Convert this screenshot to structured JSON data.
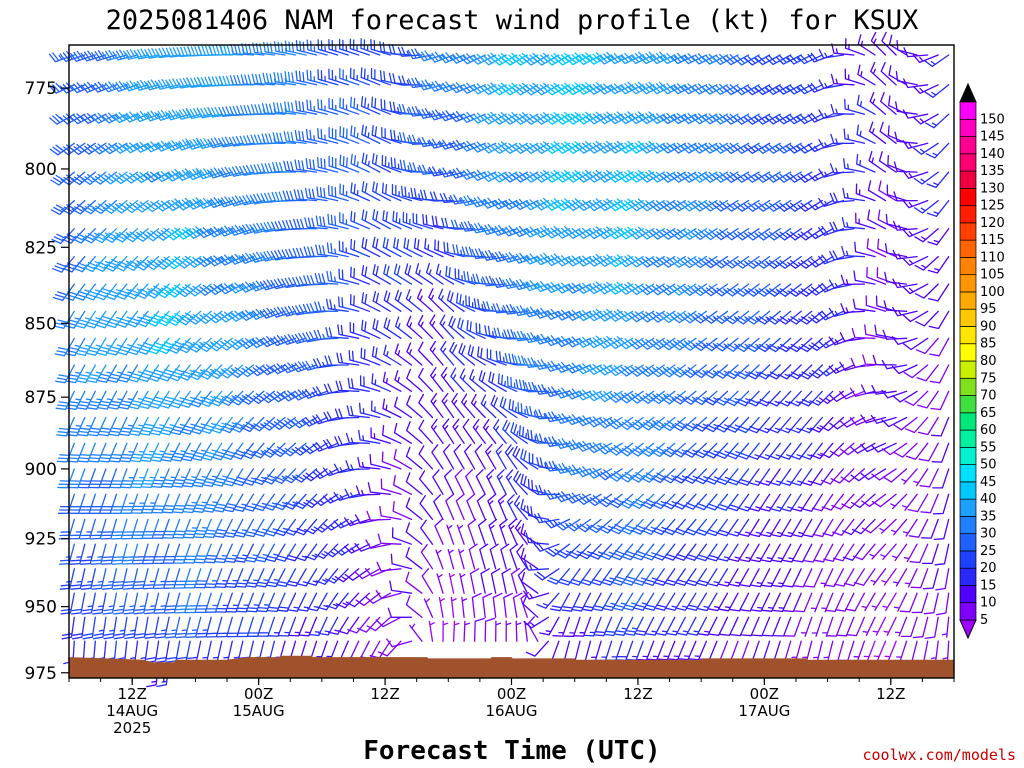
{
  "chart_data": {
    "type": "wind-barb",
    "title": "2025081406 NAM forecast wind profile (kt) for KSUX",
    "xlabel": "Forecast Time (UTC)",
    "ylabel": "",
    "x_range_hours": [
      0,
      84
    ],
    "y_range_hpa": [
      762,
      977
    ],
    "y_ticks": [
      775,
      800,
      825,
      850,
      875,
      900,
      925,
      950,
      975
    ],
    "x_ticks": [
      {
        "hour": 6,
        "line1": "12Z",
        "line2": "14AUG",
        "line3": "2025"
      },
      {
        "hour": 18,
        "line1": "00Z",
        "line2": "15AUG",
        "line3": ""
      },
      {
        "hour": 30,
        "line1": "12Z",
        "line2": "",
        "line3": ""
      },
      {
        "hour": 42,
        "line1": "00Z",
        "line2": "16AUG",
        "line3": ""
      },
      {
        "hour": 54,
        "line1": "12Z",
        "line2": "",
        "line3": ""
      },
      {
        "hour": 66,
        "line1": "00Z",
        "line2": "17AUG",
        "line3": ""
      },
      {
        "hour": 78,
        "line1": "12Z",
        "line2": "",
        "line3": ""
      }
    ],
    "colorbar": {
      "levels": [
        5,
        10,
        15,
        20,
        25,
        30,
        35,
        40,
        45,
        50,
        55,
        60,
        65,
        70,
        75,
        80,
        85,
        90,
        95,
        100,
        105,
        110,
        115,
        120,
        125,
        130,
        135,
        140,
        145,
        150
      ],
      "colors": [
        "#8000ff",
        "#5000ff",
        "#2828ff",
        "#1e40ff",
        "#2060ff",
        "#1e80ff",
        "#1ea0ff",
        "#00c8ff",
        "#00e0ff",
        "#00f0d0",
        "#00f0a0",
        "#00e678",
        "#40e040",
        "#80e020",
        "#c8f000",
        "#ffff00",
        "#ffe600",
        "#ffc800",
        "#ffaa00",
        "#ff9600",
        "#ff8200",
        "#ff6400",
        "#ff4000",
        "#ff1e00",
        "#ff0000",
        "#f00040",
        "#ff0070",
        "#ff0090",
        "#ff00c0",
        "#ff00ff"
      ],
      "under_color": "#a000ff",
      "over_color": "#000000"
    },
    "surface": {
      "color": "#a0522d",
      "pressure_hpa_by_hour": [
        [
          0,
          969
        ],
        [
          7,
          970
        ],
        [
          8,
          971
        ],
        [
          10,
          971
        ],
        [
          10.1,
          970
        ],
        [
          15,
          970
        ],
        [
          16,
          969.5
        ],
        [
          17,
          969
        ],
        [
          20,
          969
        ],
        [
          20.1,
          968.5
        ],
        [
          23,
          968.5
        ],
        [
          23.1,
          969
        ],
        [
          34,
          969
        ],
        [
          34.1,
          969.5
        ],
        [
          40,
          969.5
        ],
        [
          40.1,
          969
        ],
        [
          42,
          969
        ],
        [
          42.1,
          969.5
        ],
        [
          48,
          969.5
        ],
        [
          48.1,
          970
        ],
        [
          60,
          970
        ],
        [
          60.1,
          969.5
        ],
        [
          70,
          969.5
        ],
        [
          70.1,
          970
        ],
        [
          84,
          970
        ]
      ]
    },
    "wind_speed_field": {
      "description": "barb speed (kt) sampled at hour/pressure control points; directions in degrees (meteorological, wind from)",
      "hours": [
        0,
        6,
        12,
        18,
        24,
        30,
        36,
        42,
        48,
        54,
        60,
        66,
        72,
        78,
        84
      ],
      "levels_hpa": [
        765,
        800,
        850,
        900,
        950,
        970
      ],
      "speed_kt": [
        [
          25,
          28,
          32,
          28,
          22,
          15
        ],
        [
          32,
          35,
          38,
          33,
          25,
          15
        ],
        [
          40,
          38,
          40,
          35,
          28,
          15
        ],
        [
          35,
          32,
          33,
          30,
          22,
          12
        ],
        [
          28,
          30,
          28,
          22,
          16,
          10
        ],
        [
          20,
          24,
          18,
          12,
          10,
          8
        ],
        [
          30,
          25,
          14,
          10,
          6,
          5
        ],
        [
          40,
          35,
          28,
          15,
          10,
          6
        ],
        [
          42,
          40,
          35,
          30,
          15,
          10
        ],
        [
          38,
          40,
          38,
          32,
          25,
          12
        ],
        [
          35,
          35,
          32,
          25,
          15,
          10
        ],
        [
          25,
          28,
          25,
          18,
          12,
          8
        ],
        [
          20,
          20,
          18,
          12,
          8,
          6
        ],
        [
          10,
          12,
          10,
          8,
          6,
          5
        ],
        [
          15,
          15,
          12,
          10,
          8,
          6
        ]
      ],
      "dir_deg": [
        [
          250,
          230,
          210,
          200,
          190,
          180
        ],
        [
          255,
          235,
          215,
          200,
          190,
          185
        ],
        [
          265,
          245,
          225,
          205,
          195,
          190
        ],
        [
          275,
          260,
          240,
          215,
          200,
          190
        ],
        [
          285,
          280,
          260,
          230,
          205,
          195
        ],
        [
          290,
          300,
          300,
          280,
          230,
          200
        ],
        [
          250,
          260,
          320,
          330,
          350,
          10
        ],
        [
          240,
          240,
          270,
          330,
          350,
          5
        ],
        [
          240,
          240,
          245,
          260,
          200,
          190
        ],
        [
          245,
          240,
          240,
          230,
          210,
          195
        ],
        [
          245,
          240,
          235,
          225,
          210,
          200
        ],
        [
          240,
          240,
          230,
          215,
          205,
          195
        ],
        [
          245,
          240,
          230,
          215,
          200,
          190
        ],
        [
          320,
          310,
          290,
          240,
          210,
          200
        ],
        [
          230,
          215,
          205,
          195,
          185,
          180
        ]
      ]
    }
  },
  "credit": "coolwx.com/models"
}
